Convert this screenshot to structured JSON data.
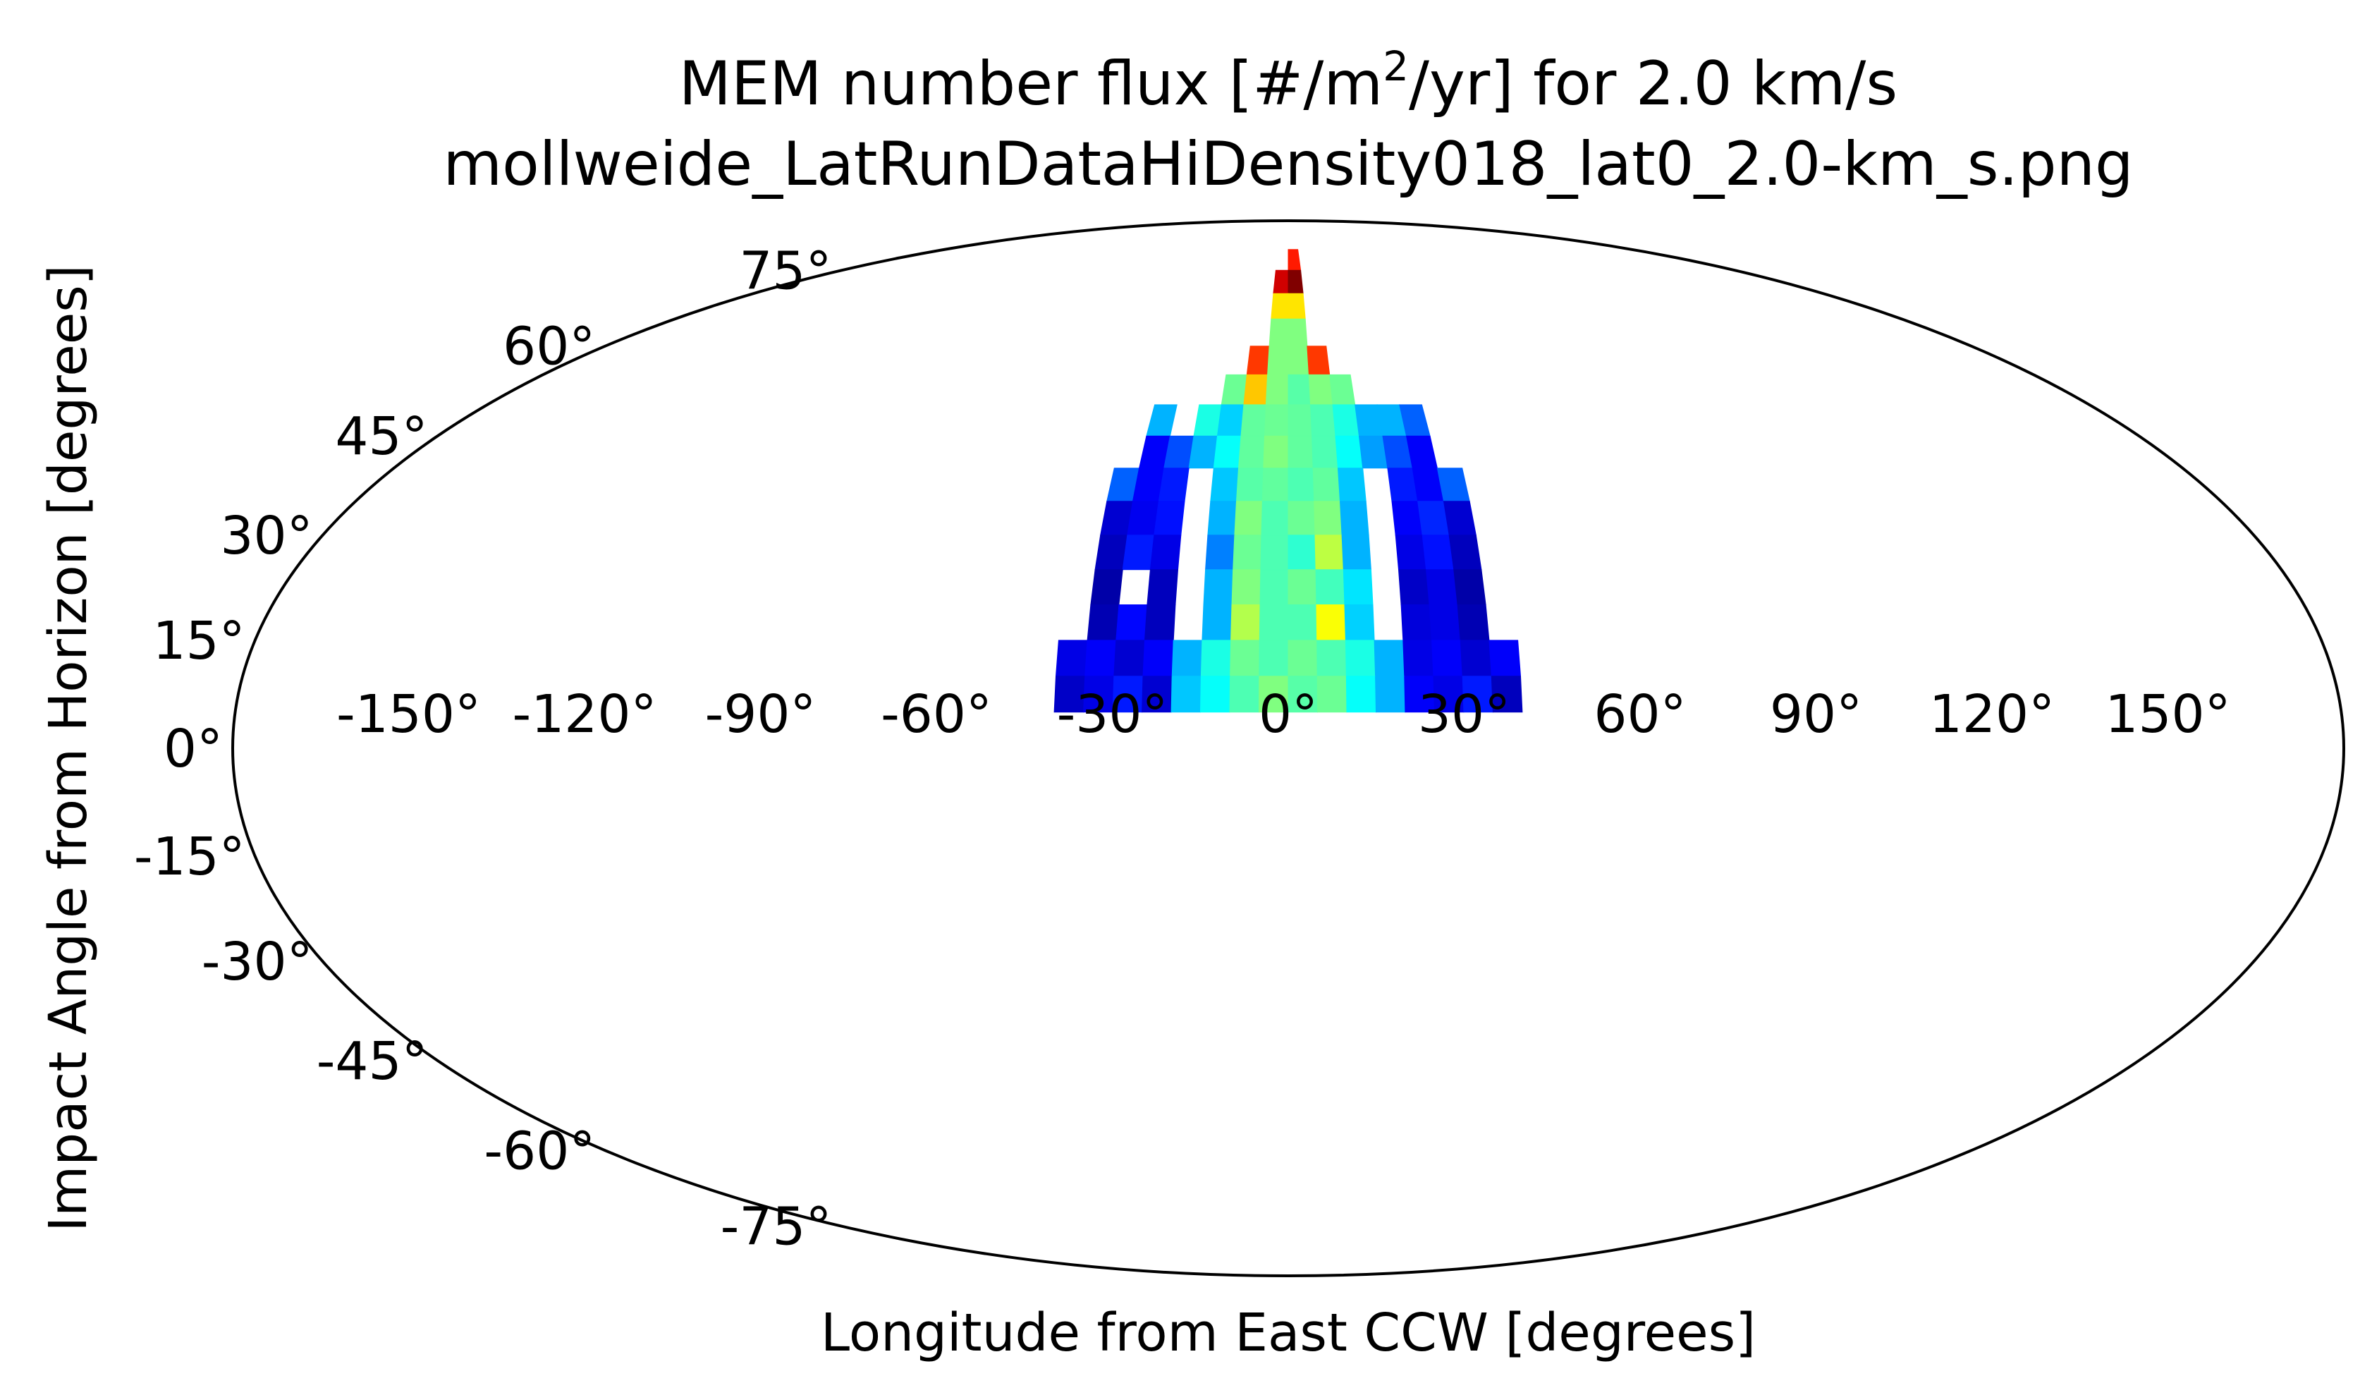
{
  "chart_data": {
    "type": "heatmap",
    "projection": "mollweide",
    "title": {
      "prefix": "MEM number flux [#/m",
      "superscript": "2",
      "suffix": "/yr] for 2.0 km/s",
      "line2": "mollweide_LatRunDataHiDensity018_lat0_2.0-km_s.png"
    },
    "xlabel": "Longitude from East CCW [degrees]",
    "ylabel": "Impact Angle from Horizon [degrees]",
    "xlim": [
      -180,
      180
    ],
    "ylim": [
      -90,
      90
    ],
    "x_ticks": [
      {
        "value": -150,
        "label": "-150°"
      },
      {
        "value": -120,
        "label": "-120°"
      },
      {
        "value": -90,
        "label": "-90°"
      },
      {
        "value": -60,
        "label": "-60°"
      },
      {
        "value": -30,
        "label": "-30°"
      },
      {
        "value": 0,
        "label": "0°"
      },
      {
        "value": 30,
        "label": "30°"
      },
      {
        "value": 60,
        "label": "60°"
      },
      {
        "value": 90,
        "label": "90°"
      },
      {
        "value": 120,
        "label": "120°"
      },
      {
        "value": 150,
        "label": "150°"
      }
    ],
    "y_ticks": [
      {
        "value": 75,
        "label": "75°"
      },
      {
        "value": 60,
        "label": "60°"
      },
      {
        "value": 45,
        "label": "45°"
      },
      {
        "value": 30,
        "label": "30°"
      },
      {
        "value": 15,
        "label": "15°"
      },
      {
        "value": 0,
        "label": "0°"
      },
      {
        "value": -15,
        "label": "-15°"
      },
      {
        "value": -30,
        "label": "-30°"
      },
      {
        "value": -45,
        "label": "-45°"
      },
      {
        "value": -60,
        "label": "-60°"
      },
      {
        "value": -75,
        "label": "-75°"
      }
    ],
    "grid": false,
    "colormap": "jet",
    "cell_size_deg": 5,
    "relative_scale": "0 (lowest) to 1 (highest) on the jet colormap",
    "cells": [
      {
        "lon": 0,
        "lat": 75,
        "v": 0.85
      },
      {
        "lon": -5,
        "lat": 70,
        "v": 0.92
      },
      {
        "lon": 0,
        "lat": 70,
        "v": 1.0
      },
      {
        "lon": -5,
        "lat": 65,
        "v": 0.65
      },
      {
        "lon": 0,
        "lat": 65,
        "v": 0.65
      },
      {
        "lon": -5,
        "lat": 60,
        "v": 0.5
      },
      {
        "lon": 0,
        "lat": 60,
        "v": 0.5
      },
      {
        "lon": -10,
        "lat": 55,
        "v": 0.82
      },
      {
        "lon": -5,
        "lat": 55,
        "v": 0.5
      },
      {
        "lon": 0,
        "lat": 55,
        "v": 0.5
      },
      {
        "lon": 5,
        "lat": 55,
        "v": 0.82
      },
      {
        "lon": -15,
        "lat": 50,
        "v": 0.48
      },
      {
        "lon": -10,
        "lat": 50,
        "v": 0.68
      },
      {
        "lon": -5,
        "lat": 50,
        "v": 0.5
      },
      {
        "lon": 0,
        "lat": 50,
        "v": 0.46
      },
      {
        "lon": 5,
        "lat": 50,
        "v": 0.5
      },
      {
        "lon": 10,
        "lat": 50,
        "v": 0.48
      },
      {
        "lon": -30,
        "lat": 45,
        "v": 0.3
      },
      {
        "lon": -20,
        "lat": 45,
        "v": 0.4
      },
      {
        "lon": -15,
        "lat": 45,
        "v": 0.33
      },
      {
        "lon": -10,
        "lat": 45,
        "v": 0.47
      },
      {
        "lon": -5,
        "lat": 45,
        "v": 0.48
      },
      {
        "lon": 0,
        "lat": 45,
        "v": 0.47
      },
      {
        "lon": 5,
        "lat": 45,
        "v": 0.45
      },
      {
        "lon": 10,
        "lat": 45,
        "v": 0.4
      },
      {
        "lon": 15,
        "lat": 45,
        "v": 0.3
      },
      {
        "lon": 20,
        "lat": 45,
        "v": 0.3
      },
      {
        "lon": 25,
        "lat": 45,
        "v": 0.22
      },
      {
        "lon": -30,
        "lat": 40,
        "v": 0.12
      },
      {
        "lon": -25,
        "lat": 40,
        "v": 0.2
      },
      {
        "lon": -20,
        "lat": 40,
        "v": 0.3
      },
      {
        "lon": -15,
        "lat": 40,
        "v": 0.38
      },
      {
        "lon": -10,
        "lat": 40,
        "v": 0.47
      },
      {
        "lon": -5,
        "lat": 40,
        "v": 0.5
      },
      {
        "lon": 0,
        "lat": 40,
        "v": 0.47
      },
      {
        "lon": 5,
        "lat": 40,
        "v": 0.45
      },
      {
        "lon": 10,
        "lat": 40,
        "v": 0.38
      },
      {
        "lon": 15,
        "lat": 40,
        "v": 0.28
      },
      {
        "lon": 20,
        "lat": 40,
        "v": 0.2
      },
      {
        "lon": 25,
        "lat": 40,
        "v": 0.12
      },
      {
        "lon": -35,
        "lat": 35,
        "v": 0.22
      },
      {
        "lon": -30,
        "lat": 35,
        "v": 0.12
      },
      {
        "lon": -25,
        "lat": 35,
        "v": 0.15
      },
      {
        "lon": -15,
        "lat": 35,
        "v": 0.32
      },
      {
        "lon": -10,
        "lat": 35,
        "v": 0.46
      },
      {
        "lon": -5,
        "lat": 35,
        "v": 0.47
      },
      {
        "lon": 0,
        "lat": 35,
        "v": 0.45
      },
      {
        "lon": 5,
        "lat": 35,
        "v": 0.47
      },
      {
        "lon": 10,
        "lat": 35,
        "v": 0.32
      },
      {
        "lon": 20,
        "lat": 35,
        "v": 0.15
      },
      {
        "lon": 25,
        "lat": 35,
        "v": 0.12
      },
      {
        "lon": 30,
        "lat": 35,
        "v": 0.22
      },
      {
        "lon": -35,
        "lat": 30,
        "v": 0.08
      },
      {
        "lon": -30,
        "lat": 30,
        "v": 0.11
      },
      {
        "lon": -25,
        "lat": 30,
        "v": 0.14
      },
      {
        "lon": -15,
        "lat": 30,
        "v": 0.3
      },
      {
        "lon": -10,
        "lat": 30,
        "v": 0.5
      },
      {
        "lon": -5,
        "lat": 30,
        "v": 0.45
      },
      {
        "lon": 0,
        "lat": 30,
        "v": 0.48
      },
      {
        "lon": 5,
        "lat": 30,
        "v": 0.5
      },
      {
        "lon": 10,
        "lat": 30,
        "v": 0.3
      },
      {
        "lon": 20,
        "lat": 30,
        "v": 0.12
      },
      {
        "lon": 25,
        "lat": 30,
        "v": 0.16
      },
      {
        "lon": 30,
        "lat": 30,
        "v": 0.08
      },
      {
        "lon": -35,
        "lat": 25,
        "v": 0.06
      },
      {
        "lon": -30,
        "lat": 25,
        "v": 0.15
      },
      {
        "lon": -25,
        "lat": 25,
        "v": 0.1
      },
      {
        "lon": -15,
        "lat": 25,
        "v": 0.25
      },
      {
        "lon": -10,
        "lat": 25,
        "v": 0.48
      },
      {
        "lon": -5,
        "lat": 25,
        "v": 0.45
      },
      {
        "lon": 0,
        "lat": 25,
        "v": 0.42
      },
      {
        "lon": 5,
        "lat": 25,
        "v": 0.56
      },
      {
        "lon": 10,
        "lat": 25,
        "v": 0.3
      },
      {
        "lon": 20,
        "lat": 25,
        "v": 0.1
      },
      {
        "lon": 25,
        "lat": 25,
        "v": 0.14
      },
      {
        "lon": 30,
        "lat": 25,
        "v": 0.06
      },
      {
        "lon": -35,
        "lat": 20,
        "v": 0.04
      },
      {
        "lon": -25,
        "lat": 20,
        "v": 0.06
      },
      {
        "lon": -15,
        "lat": 20,
        "v": 0.3
      },
      {
        "lon": -10,
        "lat": 20,
        "v": 0.5
      },
      {
        "lon": -5,
        "lat": 20,
        "v": 0.45
      },
      {
        "lon": 0,
        "lat": 20,
        "v": 0.48
      },
      {
        "lon": 5,
        "lat": 20,
        "v": 0.44
      },
      {
        "lon": 10,
        "lat": 20,
        "v": 0.35
      },
      {
        "lon": 20,
        "lat": 20,
        "v": 0.07
      },
      {
        "lon": 25,
        "lat": 20,
        "v": 0.1
      },
      {
        "lon": 30,
        "lat": 20,
        "v": 0.04
      },
      {
        "lon": -35,
        "lat": 15,
        "v": 0.05
      },
      {
        "lon": -30,
        "lat": 15,
        "v": 0.13
      },
      {
        "lon": -25,
        "lat": 15,
        "v": 0.06
      },
      {
        "lon": -15,
        "lat": 15,
        "v": 0.3
      },
      {
        "lon": -10,
        "lat": 15,
        "v": 0.55
      },
      {
        "lon": -5,
        "lat": 15,
        "v": 0.45
      },
      {
        "lon": 0,
        "lat": 15,
        "v": 0.45
      },
      {
        "lon": 5,
        "lat": 15,
        "v": 0.62
      },
      {
        "lon": 10,
        "lat": 15,
        "v": 0.33
      },
      {
        "lon": 20,
        "lat": 15,
        "v": 0.09
      },
      {
        "lon": 25,
        "lat": 15,
        "v": 0.1
      },
      {
        "lon": 30,
        "lat": 15,
        "v": 0.05
      },
      {
        "lon": -40,
        "lat": 10,
        "v": 0.1
      },
      {
        "lon": -35,
        "lat": 10,
        "v": 0.12
      },
      {
        "lon": -30,
        "lat": 10,
        "v": 0.08
      },
      {
        "lon": -25,
        "lat": 10,
        "v": 0.12
      },
      {
        "lon": -20,
        "lat": 10,
        "v": 0.3
      },
      {
        "lon": -15,
        "lat": 10,
        "v": 0.4
      },
      {
        "lon": -10,
        "lat": 10,
        "v": 0.48
      },
      {
        "lon": -5,
        "lat": 10,
        "v": 0.45
      },
      {
        "lon": 0,
        "lat": 10,
        "v": 0.48
      },
      {
        "lon": 5,
        "lat": 10,
        "v": 0.45
      },
      {
        "lon": 10,
        "lat": 10,
        "v": 0.4
      },
      {
        "lon": 15,
        "lat": 10,
        "v": 0.3
      },
      {
        "lon": 20,
        "lat": 10,
        "v": 0.1
      },
      {
        "lon": 25,
        "lat": 10,
        "v": 0.12
      },
      {
        "lon": 30,
        "lat": 10,
        "v": 0.08
      },
      {
        "lon": 35,
        "lat": 10,
        "v": 0.12
      },
      {
        "lon": -40,
        "lat": 5,
        "v": 0.07
      },
      {
        "lon": -35,
        "lat": 5,
        "v": 0.1
      },
      {
        "lon": -30,
        "lat": 5,
        "v": 0.15
      },
      {
        "lon": -25,
        "lat": 5,
        "v": 0.08
      },
      {
        "lon": -20,
        "lat": 5,
        "v": 0.32
      },
      {
        "lon": -15,
        "lat": 5,
        "v": 0.38
      },
      {
        "lon": -10,
        "lat": 5,
        "v": 0.45
      },
      {
        "lon": -5,
        "lat": 5,
        "v": 0.5
      },
      {
        "lon": 0,
        "lat": 5,
        "v": 0.46
      },
      {
        "lon": 5,
        "lat": 5,
        "v": 0.48
      },
      {
        "lon": 10,
        "lat": 5,
        "v": 0.38
      },
      {
        "lon": 15,
        "lat": 5,
        "v": 0.3
      },
      {
        "lon": 20,
        "lat": 5,
        "v": 0.12
      },
      {
        "lon": 25,
        "lat": 5,
        "v": 0.1
      },
      {
        "lon": 30,
        "lat": 5,
        "v": 0.15
      },
      {
        "lon": 35,
        "lat": 5,
        "v": 0.06
      }
    ]
  }
}
